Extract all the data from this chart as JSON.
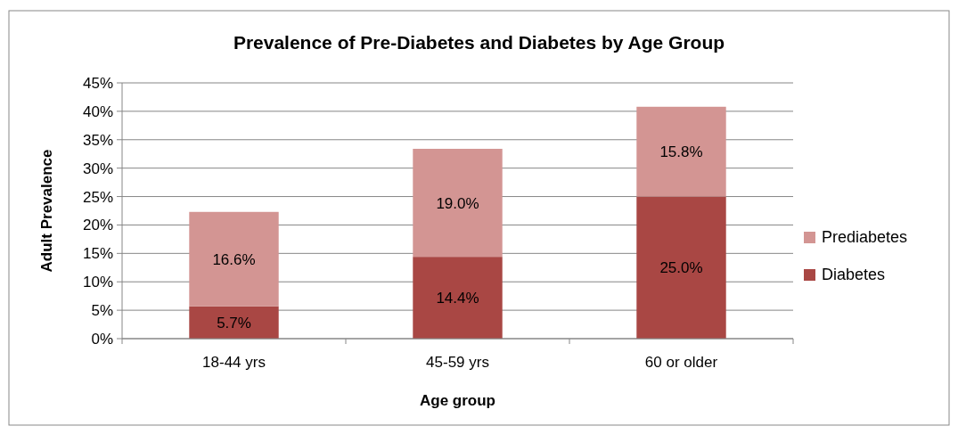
{
  "chart_data": {
    "type": "bar",
    "title": "Prevalence of Pre-Diabetes and Diabetes by Age Group",
    "xlabel": "Age group",
    "ylabel": "Adult Prevalence",
    "categories": [
      "18-44 yrs",
      "45-59 yrs",
      "60 or older"
    ],
    "stacked": true,
    "series": [
      {
        "name": "Diabetes",
        "color": "#a94744",
        "values": [
          5.7,
          14.4,
          25.0
        ],
        "value_labels": [
          "5.7%",
          "14.4%",
          "25.0%"
        ]
      },
      {
        "name": "Prediabetes",
        "color": "#d39593",
        "values": [
          16.6,
          19.0,
          15.8
        ],
        "value_labels": [
          "16.6%",
          "19.0%",
          "15.8%"
        ]
      }
    ],
    "ylim": [
      0,
      45
    ],
    "yticks": [
      {
        "value": 0,
        "label": "0%"
      },
      {
        "value": 5,
        "label": "5%"
      },
      {
        "value": 10,
        "label": "10%"
      },
      {
        "value": 15,
        "label": "15%"
      },
      {
        "value": 20,
        "label": "20%"
      },
      {
        "value": 25,
        "label": "25%"
      },
      {
        "value": 30,
        "label": "30%"
      },
      {
        "value": 35,
        "label": "35%"
      },
      {
        "value": 40,
        "label": "40%"
      },
      {
        "value": 45,
        "label": "45%"
      }
    ],
    "grid": "y",
    "legend": "right"
  }
}
